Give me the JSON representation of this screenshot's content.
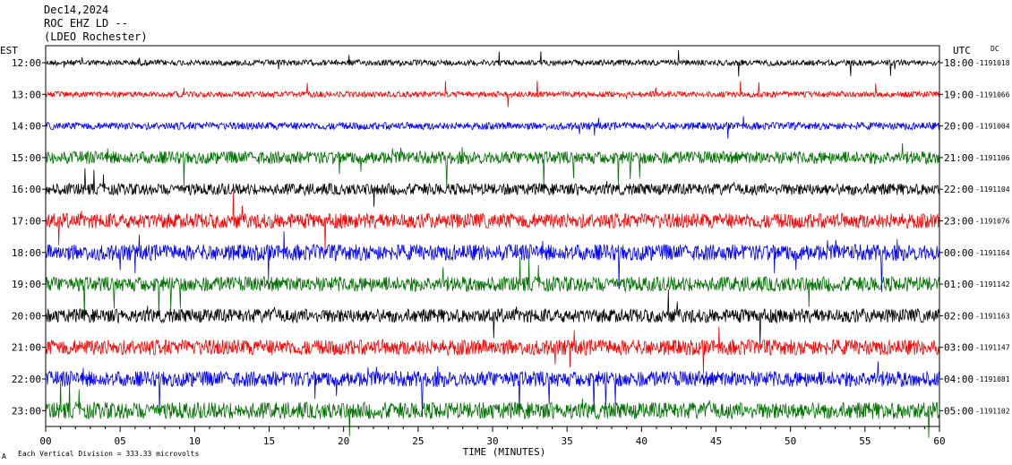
{
  "header": {
    "date": "Dec14,2024",
    "station": "ROC EHZ LD --",
    "network": "(LDEO Rochester)"
  },
  "left_axis_label": "EST",
  "right_axis_label": "UTC",
  "dc_label": "DC",
  "footer": {
    "scale_text": "Each Vertical Division =  333.33 microvolts",
    "corner_mark": "A"
  },
  "colors": {
    "trace_cycle": [
      "#000000",
      "#ff0000",
      "#0000ff",
      "#007000"
    ],
    "frame": "#000000",
    "background": "#ffffff"
  },
  "chart_data": {
    "type": "line",
    "title": "",
    "xlabel": "TIME (MINUTES)",
    "ylabel": "",
    "xlim": [
      0,
      60
    ],
    "x_ticks": [
      "00",
      "05",
      "10",
      "15",
      "20",
      "25",
      "30",
      "35",
      "40",
      "45",
      "50",
      "55",
      "60"
    ],
    "rows": [
      {
        "est": "12:00",
        "utc": "18:00",
        "dc": "1191018",
        "color": "#000000",
        "noise": 1.0
      },
      {
        "est": "13:00",
        "utc": "19:00",
        "dc": "1191066",
        "color": "#ff0000",
        "noise": 1.0
      },
      {
        "est": "14:00",
        "utc": "20:00",
        "dc": "1191004",
        "color": "#0000ff",
        "noise": 1.3
      },
      {
        "est": "15:00",
        "utc": "21:00",
        "dc": "1191106",
        "color": "#007000",
        "noise": 2.2
      },
      {
        "est": "16:00",
        "utc": "22:00",
        "dc": "1191104",
        "color": "#000000",
        "noise": 2.0
      },
      {
        "est": "17:00",
        "utc": "23:00",
        "dc": "1191076",
        "color": "#ff0000",
        "noise": 2.6
      },
      {
        "est": "18:00",
        "utc": "00:00",
        "dc": "1191164",
        "color": "#0000ff",
        "noise": 2.8
      },
      {
        "est": "19:00",
        "utc": "01:00",
        "dc": "1191142",
        "color": "#007000",
        "noise": 2.6
      },
      {
        "est": "20:00",
        "utc": "02:00",
        "dc": "1191163",
        "color": "#000000",
        "noise": 2.4
      },
      {
        "est": "21:00",
        "utc": "03:00",
        "dc": "1191147",
        "color": "#ff0000",
        "noise": 2.7
      },
      {
        "est": "22:00",
        "utc": "04:00",
        "dc": "1191081",
        "color": "#0000ff",
        "noise": 2.7
      },
      {
        "est": "23:00",
        "utc": "05:00",
        "dc": "1191102",
        "color": "#007000",
        "noise": 2.9
      }
    ]
  }
}
